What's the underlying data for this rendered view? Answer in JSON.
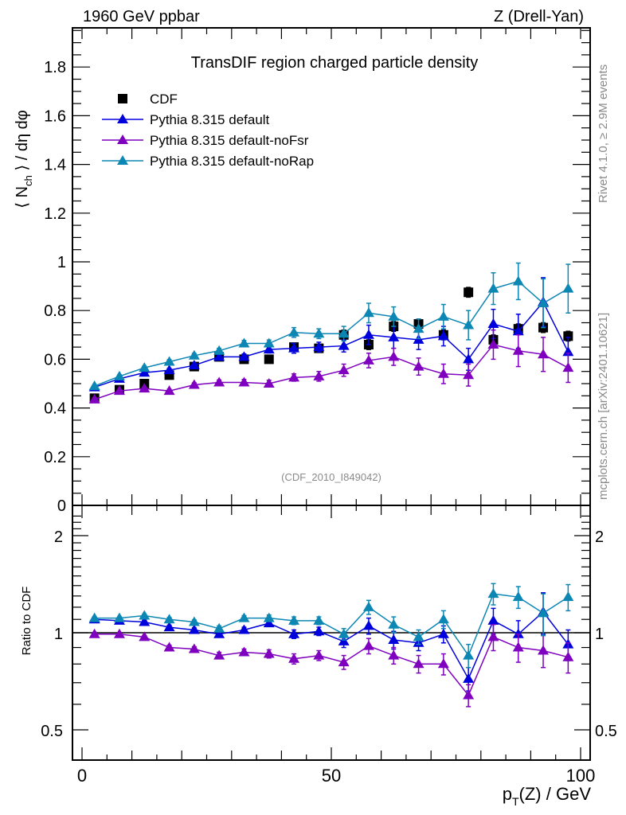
{
  "header": {
    "left": "1960 GeV ppbar",
    "right": "Z (Drell-Yan)"
  },
  "side_labels": {
    "rivet": "Rivet 4.1.0, ≥ 2.9M events",
    "mcplots": "mcplots.cern.ch [arXiv:2401.10621]"
  },
  "analysis_id": "(CDF_2010_I849042)",
  "colors": {
    "CDF": "#000000",
    "default": "#0000dd",
    "noFsr": "#7f00bf",
    "noRap": "#0c87b3"
  },
  "chart_data": [
    {
      "type": "scatter",
      "title": "TransDIF region charged particle density",
      "xlabel": "",
      "ylabel": "⟨N_ch⟩ / dη dφ",
      "xlim": [
        -1,
        101
      ],
      "ylim": [
        0,
        1.97
      ],
      "yticks": [
        0,
        0.2,
        0.4,
        0.6,
        0.8,
        1,
        1.2,
        1.4,
        1.6,
        1.8
      ],
      "ytick_labels": [
        "0",
        "0.2",
        "0.4",
        "0.6",
        "0.8",
        "1",
        "1.2",
        "1.4",
        "1.6",
        "1.8"
      ],
      "legend_position": "top-left",
      "x": [
        2.5,
        7.5,
        12.5,
        17.5,
        22.5,
        27.5,
        32.5,
        37.5,
        42.5,
        47.5,
        52.5,
        57.5,
        62.5,
        67.5,
        72.5,
        77.5,
        82.5,
        87.5,
        92.5,
        97.5
      ],
      "series": [
        {
          "name": "CDF",
          "key": "CDF",
          "marker": "square",
          "values": [
            0.44,
            0.475,
            0.5,
            0.535,
            0.57,
            0.61,
            0.6,
            0.6,
            0.65,
            0.645,
            0.7,
            0.66,
            0.735,
            0.745,
            0.7,
            0.875,
            0.68,
            0.725,
            0.73,
            0.695
          ],
          "errors": [
            0.01,
            0.01,
            0.01,
            0.01,
            0.01,
            0.01,
            0.01,
            0.01,
            0.01,
            0.01,
            0.02,
            0.02,
            0.02,
            0.02,
            0.02,
            0.02,
            0.02,
            0.02,
            0.02,
            0.02
          ]
        },
        {
          "name": "Pythia 8.315 default",
          "key": "default",
          "marker": "triangle",
          "values": [
            0.485,
            0.52,
            0.545,
            0.555,
            0.575,
            0.61,
            0.61,
            0.64,
            0.645,
            0.65,
            0.655,
            0.7,
            0.69,
            0.68,
            0.695,
            0.6,
            0.745,
            0.715,
            0.835,
            0.63
          ],
          "errors": [
            0.005,
            0.005,
            0.006,
            0.007,
            0.008,
            0.01,
            0.012,
            0.014,
            0.02,
            0.02,
            0.025,
            0.04,
            0.045,
            0.04,
            0.04,
            0.045,
            0.06,
            0.07,
            0.1,
            0.06
          ]
        },
        {
          "name": "Pythia 8.315 default-noFsr",
          "key": "noFsr",
          "marker": "triangle",
          "values": [
            0.435,
            0.47,
            0.48,
            0.47,
            0.495,
            0.505,
            0.505,
            0.5,
            0.525,
            0.53,
            0.555,
            0.595,
            0.61,
            0.57,
            0.54,
            0.535,
            0.66,
            0.635,
            0.62,
            0.565
          ],
          "errors": [
            0.005,
            0.005,
            0.006,
            0.007,
            0.008,
            0.01,
            0.012,
            0.014,
            0.015,
            0.02,
            0.025,
            0.03,
            0.035,
            0.035,
            0.04,
            0.045,
            0.06,
            0.065,
            0.07,
            0.06
          ]
        },
        {
          "name": "Pythia 8.315 default-noRap",
          "key": "noRap",
          "marker": "triangle",
          "values": [
            0.49,
            0.53,
            0.565,
            0.59,
            0.615,
            0.635,
            0.665,
            0.665,
            0.71,
            0.705,
            0.705,
            0.79,
            0.775,
            0.725,
            0.775,
            0.74,
            0.89,
            0.92,
            0.83,
            0.89
          ],
          "errors": [
            0.005,
            0.006,
            0.007,
            0.008,
            0.009,
            0.01,
            0.012,
            0.014,
            0.02,
            0.02,
            0.03,
            0.04,
            0.04,
            0.04,
            0.05,
            0.06,
            0.065,
            0.075,
            0.1,
            0.1
          ]
        }
      ]
    },
    {
      "type": "scatter",
      "title": "",
      "xlabel": "p_T(Z) / GeV",
      "ylabel": "Ratio to CDF",
      "xlim": [
        -1,
        101
      ],
      "ylim": [
        0.35,
        2.35
      ],
      "yscale": "log",
      "yticks": [
        0.5,
        1,
        2
      ],
      "ytick_labels": [
        "0.5",
        "1",
        "2"
      ],
      "xticks": [
        0,
        50,
        100
      ],
      "xtick_labels": [
        "0",
        "50",
        "100"
      ],
      "reference_line": 1,
      "x": [
        2.5,
        7.5,
        12.5,
        17.5,
        22.5,
        27.5,
        32.5,
        37.5,
        42.5,
        47.5,
        52.5,
        57.5,
        62.5,
        67.5,
        72.5,
        77.5,
        82.5,
        87.5,
        92.5,
        97.5
      ],
      "series": [
        {
          "name": "Pythia 8.315 default",
          "key": "default",
          "values": [
            1.1,
            1.09,
            1.08,
            1.04,
            1.02,
            0.99,
            1.02,
            1.07,
            0.99,
            1.01,
            0.94,
            1.05,
            0.95,
            0.93,
            0.99,
            0.72,
            1.09,
            0.99,
            1.16,
            0.92
          ],
          "errors": [
            0.01,
            0.01,
            0.012,
            0.015,
            0.015,
            0.02,
            0.02,
            0.025,
            0.03,
            0.03,
            0.04,
            0.06,
            0.06,
            0.05,
            0.06,
            0.06,
            0.1,
            0.1,
            0.17,
            0.1
          ]
        },
        {
          "name": "Pythia 8.315 default-noFsr",
          "key": "noFsr",
          "values": [
            0.99,
            0.99,
            0.97,
            0.9,
            0.89,
            0.85,
            0.87,
            0.86,
            0.83,
            0.85,
            0.81,
            0.91,
            0.85,
            0.8,
            0.8,
            0.64,
            0.97,
            0.9,
            0.88,
            0.84
          ],
          "errors": [
            0.01,
            0.01,
            0.012,
            0.015,
            0.015,
            0.02,
            0.02,
            0.025,
            0.03,
            0.03,
            0.04,
            0.05,
            0.05,
            0.05,
            0.06,
            0.05,
            0.09,
            0.09,
            0.1,
            0.09
          ]
        },
        {
          "name": "Pythia 8.315 default-noRap",
          "key": "noRap",
          "values": [
            1.11,
            1.11,
            1.13,
            1.1,
            1.08,
            1.03,
            1.11,
            1.11,
            1.09,
            1.09,
            0.99,
            1.2,
            1.06,
            0.97,
            1.1,
            0.85,
            1.32,
            1.29,
            1.15,
            1.29
          ],
          "errors": [
            0.01,
            0.01,
            0.012,
            0.015,
            0.015,
            0.02,
            0.02,
            0.025,
            0.03,
            0.03,
            0.04,
            0.06,
            0.06,
            0.05,
            0.07,
            0.07,
            0.1,
            0.1,
            0.17,
            0.12
          ]
        }
      ]
    }
  ]
}
